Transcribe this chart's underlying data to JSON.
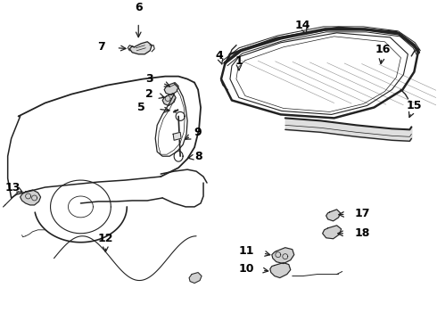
{
  "bg_color": "#ffffff",
  "line_color": "#222222",
  "label_color": "#000000",
  "fig_width": 4.9,
  "fig_height": 3.6,
  "dpi": 100
}
